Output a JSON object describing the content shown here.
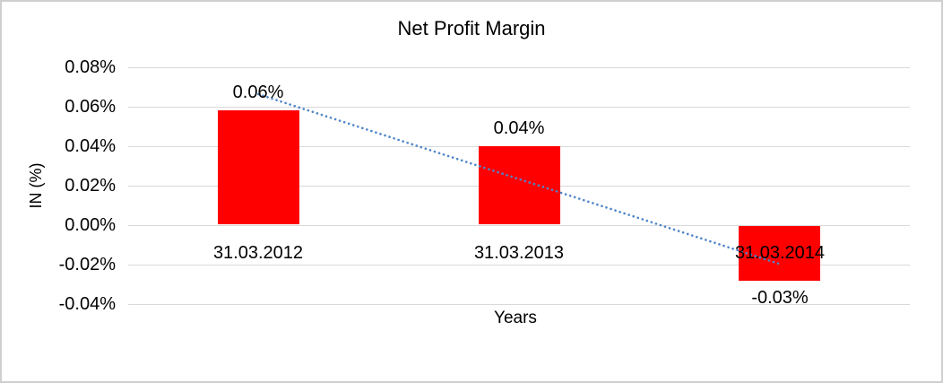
{
  "chart_data": {
    "type": "bar",
    "title": "Net Profit Margin",
    "xlabel": "Years",
    "ylabel": "IN (%)",
    "categories": [
      "31.03.2012",
      "31.03.2013",
      "31.03.2014"
    ],
    "series": [
      {
        "name": "Net Profit Margin",
        "values": [
          0.058,
          0.04,
          -0.028
        ],
        "labels": [
          "0.06%",
          "0.04%",
          "-0.03%"
        ],
        "color": "#ff0000"
      }
    ],
    "trendline": {
      "type": "linear",
      "style": "dotted",
      "color": "#4f86c8"
    },
    "y_axis": {
      "min": -0.04,
      "max": 0.08,
      "tick_step": 0.02,
      "tick_labels": [
        "0.08%",
        "0.06%",
        "0.04%",
        "0.02%",
        "0.00%",
        "-0.02%",
        "-0.04%"
      ]
    },
    "grid": true,
    "legend": false,
    "colors": {
      "gridline": "#d9d9d9",
      "frame_border": "#cfcfcf",
      "background": "#ffffff",
      "text": "#000000"
    }
  }
}
